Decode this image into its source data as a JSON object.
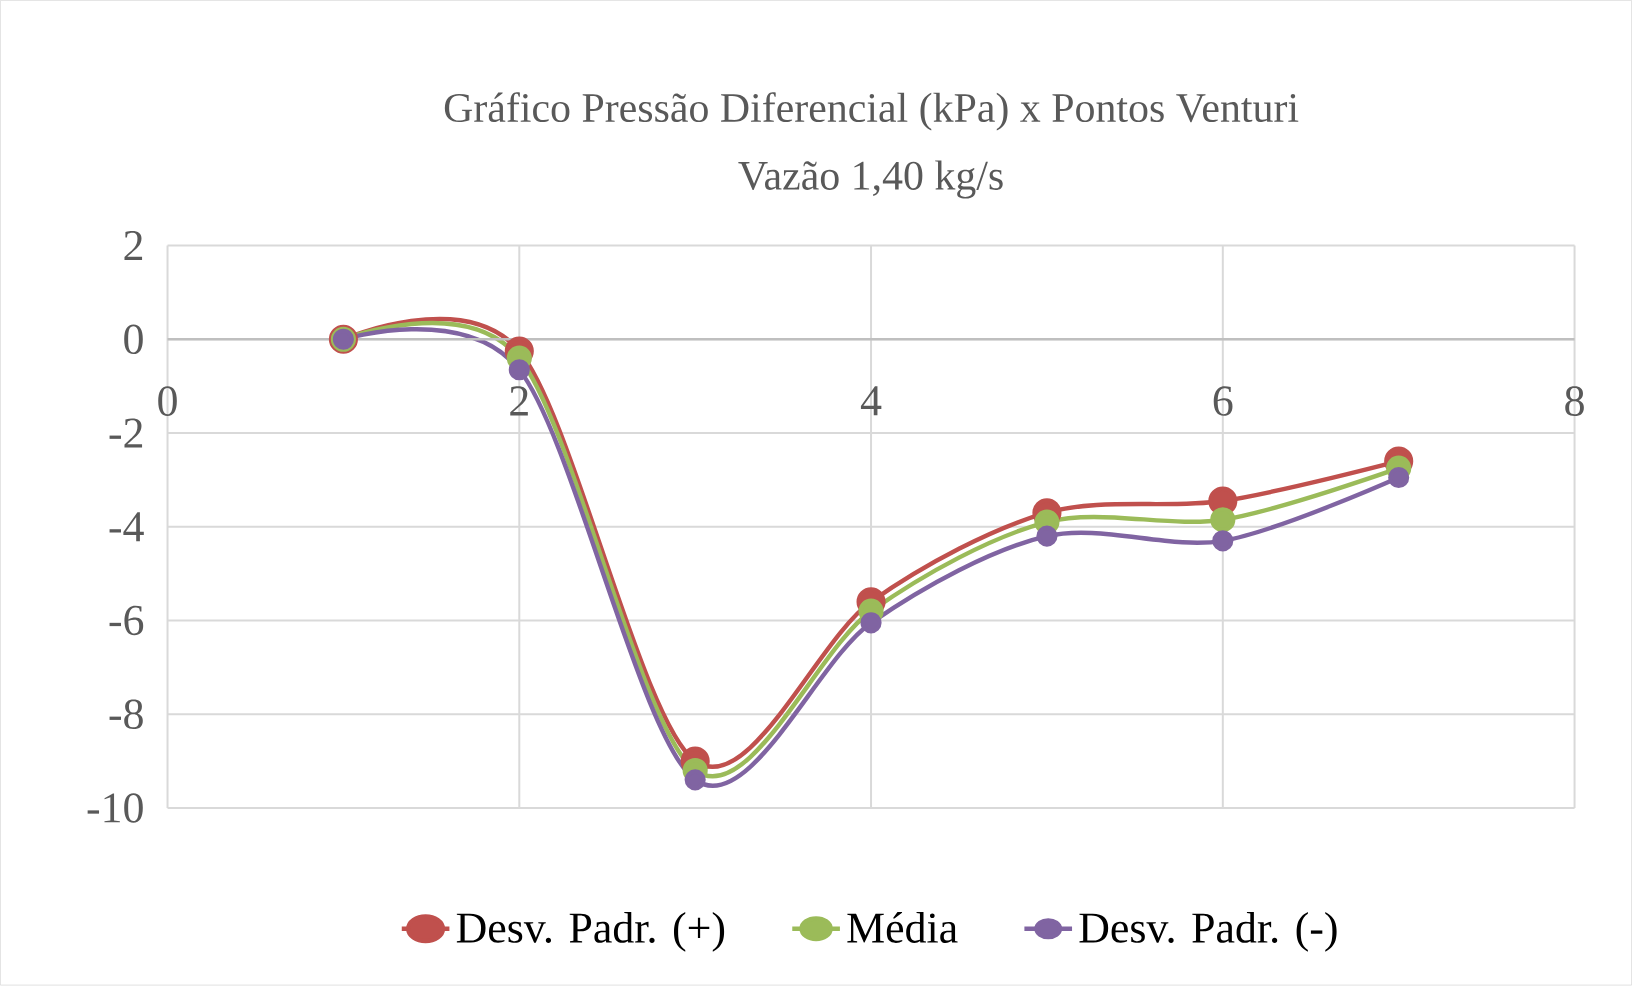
{
  "chart_data": {
    "type": "line",
    "title": "Gráfico Pressão Diferencial (kPa) x Pontos Venturi",
    "subtitle": "Vazão 1,40 kg/s",
    "x": [
      1,
      2,
      3,
      4,
      5,
      6,
      7
    ],
    "series": [
      {
        "name": "Desv. Padr. (+)",
        "color": "#c0504d",
        "values": [
          0,
          -0.25,
          -9.0,
          -5.6,
          -3.7,
          -3.45,
          -2.6
        ]
      },
      {
        "name": "Média",
        "color": "#9bbb59",
        "values": [
          0,
          -0.4,
          -9.2,
          -5.8,
          -3.9,
          -3.85,
          -2.75
        ]
      },
      {
        "name": "Desv. Padr. (-)",
        "color": "#8064a2",
        "values": [
          0,
          -0.65,
          -9.4,
          -6.05,
          -4.2,
          -4.3,
          -2.95
        ]
      }
    ],
    "xlim": [
      0,
      8
    ],
    "xticks": [
      0,
      2,
      4,
      6,
      8
    ],
    "ylim": [
      -10,
      2
    ],
    "yticks": [
      -10,
      -8,
      -6,
      -4,
      -2,
      0,
      2
    ],
    "grid": true,
    "legend": "bottom",
    "marker": "circle",
    "line_style": "solid"
  }
}
